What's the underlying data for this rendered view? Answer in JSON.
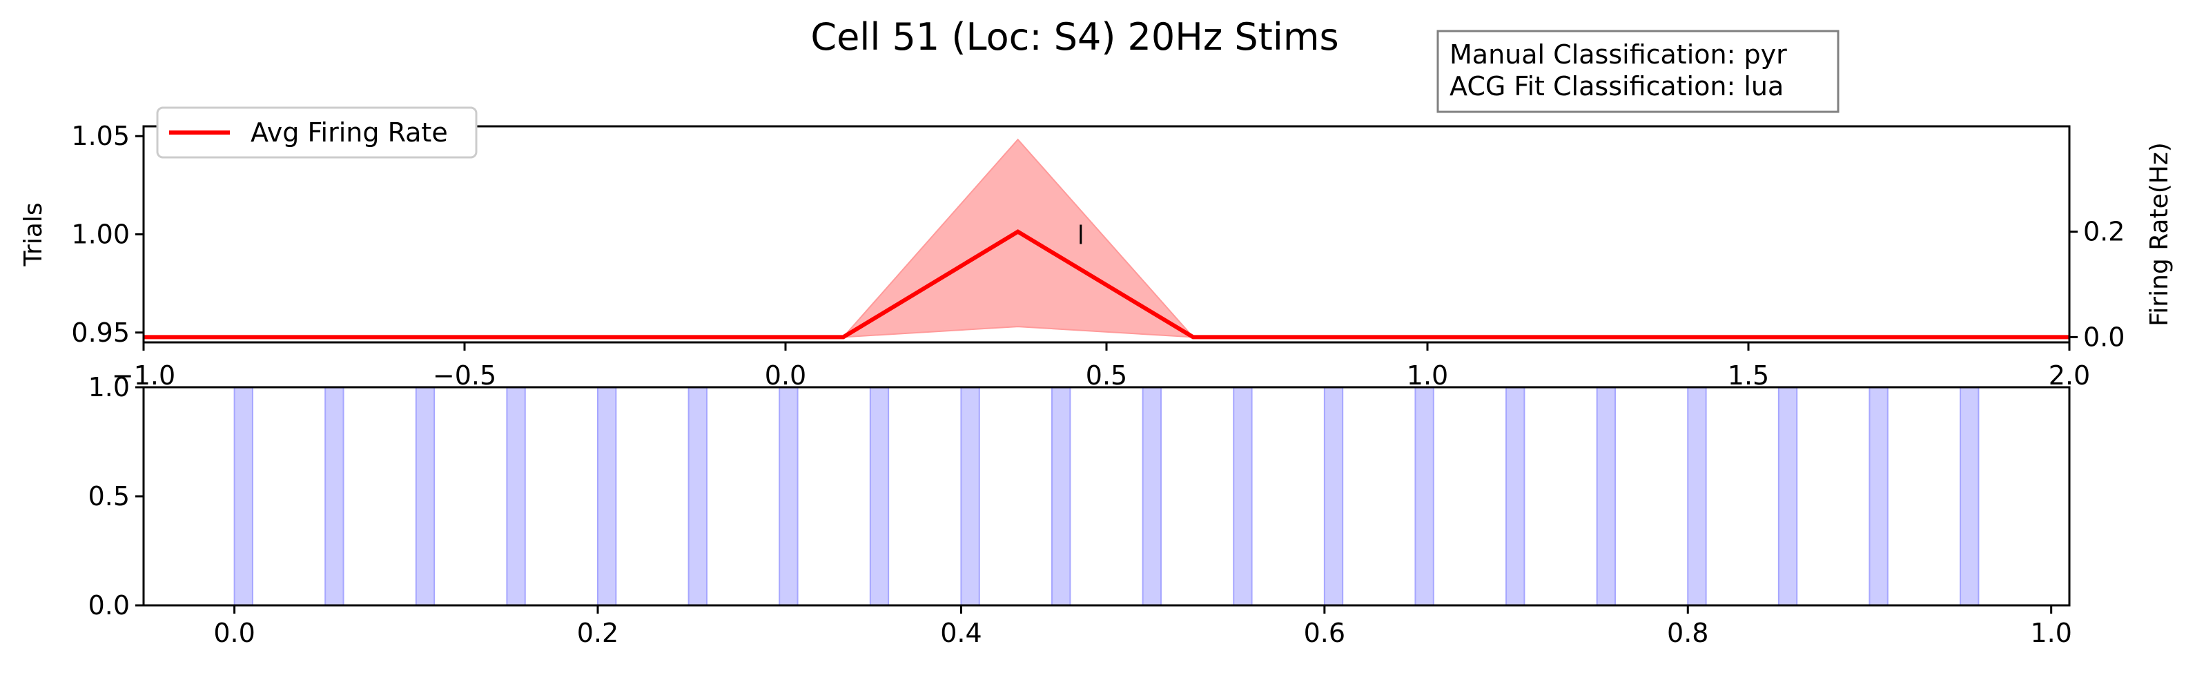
{
  "title": "Cell 51 (Loc: S4) 20Hz Stims",
  "classification_box": {
    "line1": "Manual Classification: pyr",
    "line2": "ACG Fit Classification: lua"
  },
  "colors": {
    "firing_line": "#ff0000",
    "firing_band": "#ffb3b3",
    "stim_fill": "#ccccff",
    "stim_edge": "#a6a6ff"
  },
  "chart_data": [
    {
      "type": "line",
      "legend": {
        "label": "Avg Firing Rate",
        "placement": "upper-left"
      },
      "xlim": [
        -1.0,
        2.0
      ],
      "x_ticks": [
        -1.0,
        -0.5,
        0.0,
        0.5,
        1.0,
        1.5,
        2.0
      ],
      "x_tick_labels": [
        "−1.0",
        "−0.5",
        "0.0",
        "0.5",
        "1.0",
        "1.5",
        "2.0"
      ],
      "ylabel_left": "Trials",
      "ylim_left": [
        0.945,
        1.055
      ],
      "y_ticks_left": [
        0.95,
        1.0,
        1.05
      ],
      "y_tick_labels_left": [
        "0.95",
        "1.00",
        "1.05"
      ],
      "ylabel_right": "Firing Rate(Hz)",
      "ylim_right": [
        -0.01,
        0.4
      ],
      "y_ticks_right": [
        0.0,
        0.2
      ],
      "y_tick_labels_right": [
        "0.0",
        "0.2"
      ],
      "raster": [
        {
          "x": 0.46,
          "y": 1.0
        }
      ],
      "series": [
        {
          "name": "Avg Firing Rate",
          "x": [
            -1.0,
            0.09,
            0.362,
            0.635,
            2.0
          ],
          "y": [
            0.0,
            0.0,
            0.2,
            0.0,
            0.0
          ],
          "band_lower": [
            0.0,
            0.0,
            0.02,
            0.0,
            0.0
          ],
          "band_upper": [
            0.0,
            0.0,
            0.375,
            0.0,
            0.0
          ]
        }
      ]
    },
    {
      "type": "bar",
      "xlim": [
        -0.05,
        1.01
      ],
      "x_ticks": [
        0.0,
        0.2,
        0.4,
        0.6,
        0.8,
        1.0
      ],
      "x_tick_labels": [
        "0.0",
        "0.2",
        "0.4",
        "0.6",
        "0.8",
        "1.0"
      ],
      "ylim": [
        0.0,
        1.0
      ],
      "y_ticks": [
        0.0,
        0.5,
        1.0
      ],
      "y_tick_labels": [
        "0.0",
        "0.5",
        "1.0"
      ],
      "stim_pulses": [
        {
          "start": 0.0,
          "end": 0.01
        },
        {
          "start": 0.05,
          "end": 0.06
        },
        {
          "start": 0.1,
          "end": 0.11
        },
        {
          "start": 0.15,
          "end": 0.16
        },
        {
          "start": 0.2,
          "end": 0.21
        },
        {
          "start": 0.25,
          "end": 0.26
        },
        {
          "start": 0.3,
          "end": 0.31
        },
        {
          "start": 0.35,
          "end": 0.36
        },
        {
          "start": 0.4,
          "end": 0.41
        },
        {
          "start": 0.45,
          "end": 0.46
        },
        {
          "start": 0.5,
          "end": 0.51
        },
        {
          "start": 0.55,
          "end": 0.56
        },
        {
          "start": 0.6,
          "end": 0.61
        },
        {
          "start": 0.65,
          "end": 0.66
        },
        {
          "start": 0.7,
          "end": 0.71
        },
        {
          "start": 0.75,
          "end": 0.76
        },
        {
          "start": 0.8,
          "end": 0.81
        },
        {
          "start": 0.85,
          "end": 0.86
        },
        {
          "start": 0.9,
          "end": 0.91
        },
        {
          "start": 0.95,
          "end": 0.96
        }
      ]
    }
  ]
}
